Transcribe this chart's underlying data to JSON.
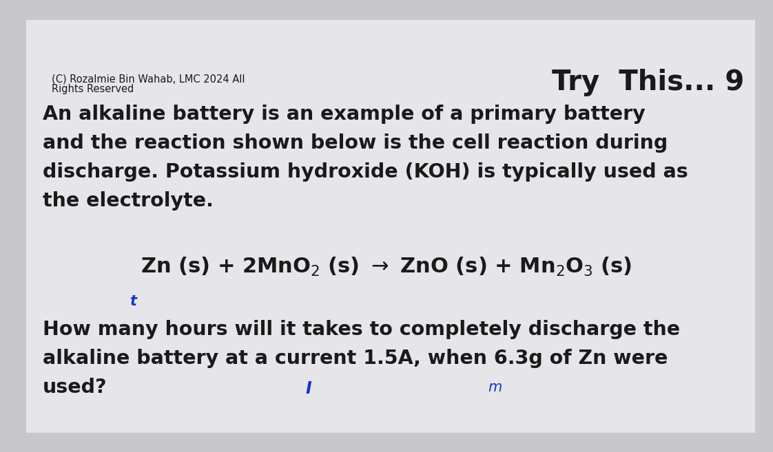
{
  "background_color": "#c8c8cc",
  "paper_color": "#e6e6ea",
  "copyright_line1": "(C) Rozalmie Bin Wahab, LMC 2024 All",
  "copyright_line2": "Rights Reserved",
  "title_text": "Try  This... 9",
  "para_line1": "An alkaline battery is an example of a primary battery",
  "para_line2": "and the reaction shown below is the cell reaction during",
  "para_line3": "discharge. Potassium hydroxide (KOH) is typically used as",
  "para_line4": "the electrolyte.",
  "equation": "Zn (s) + 2MnO$_2$ (s) $\\rightarrow$ ZnO (s) + Mn$_2$O$_3$ (s)",
  "question_line1": "How many hours will it takes to completely discharge the",
  "question_line2": "alkaline battery at a current 1.5A, when 6.3g of Zn were",
  "question_line3": "used?",
  "annotation_t": "t",
  "annotation_i": "I",
  "annotation_m": "m",
  "main_font_size": 20.5,
  "title_font_size": 29,
  "copyright_font_size": 10.5,
  "equation_font_size": 22,
  "text_color": "#1a1a1a",
  "annotation_color": "#1535cc"
}
